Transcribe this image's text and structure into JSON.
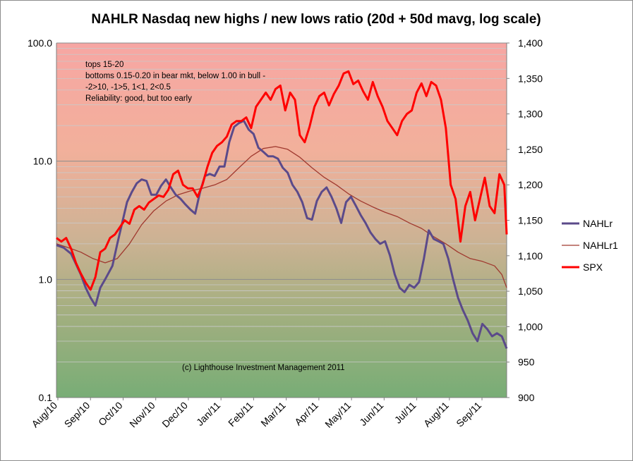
{
  "chart_data": {
    "type": "line",
    "title": "NAHLR Nasdaq new highs / new lows ratio (20d + 50d mavg, log scale)",
    "y_left": {
      "scale": "log",
      "range": [
        0.1,
        100
      ],
      "ticks": [
        "100.0",
        "10.0",
        "1.0",
        "0.1"
      ]
    },
    "y_right": {
      "range": [
        900,
        1400
      ],
      "ticks": [
        "1,400",
        "1,350",
        "1,300",
        "1,250",
        "1,200",
        "1,150",
        "1,100",
        "1,050",
        "1,000",
        "950",
        "900"
      ]
    },
    "x_labels": [
      "Aug/10",
      "Sep/10",
      "Oct/10",
      "Nov/10",
      "Dec/10",
      "Jan/11",
      "Feb/11",
      "Mar/11",
      "Apr/11",
      "May/11",
      "Jun/11",
      "Jul/11",
      "Aug/11",
      "Sep/11"
    ],
    "annotations": [
      "tops 15-20",
      "bottoms 0.15-0.20 in bear mkt, below 1.00 in bull -",
      "-2>10, -1>5, 1<1, 2<0.5",
      "Reliability: good, but too early"
    ],
    "copyright": "(c) Lighthouse Investment Management 2011",
    "legend_position": "right",
    "series": [
      {
        "name": "NAHLr",
        "axis": "left",
        "color": "#5b4a8a",
        "points": [
          [
            0,
            1.95
          ],
          [
            3,
            1.85
          ],
          [
            6,
            1.65
          ],
          [
            8,
            1.35
          ],
          [
            10,
            1.1
          ],
          [
            12,
            0.85
          ],
          [
            14,
            0.7
          ],
          [
            16,
            0.6
          ],
          [
            18,
            0.85
          ],
          [
            20,
            1.0
          ],
          [
            23,
            1.3
          ],
          [
            25,
            2.0
          ],
          [
            27,
            3.0
          ],
          [
            29,
            4.5
          ],
          [
            31,
            5.5
          ],
          [
            33,
            6.5
          ],
          [
            35,
            7.0
          ],
          [
            37,
            6.8
          ],
          [
            39,
            5.2
          ],
          [
            41,
            5.2
          ],
          [
            43,
            6.2
          ],
          [
            45,
            7.0
          ],
          [
            47,
            6.0
          ],
          [
            49,
            5.2
          ],
          [
            51,
            4.8
          ],
          [
            53,
            4.3
          ],
          [
            55,
            3.9
          ],
          [
            57,
            3.6
          ],
          [
            59,
            5.5
          ],
          [
            61,
            7.5
          ],
          [
            63,
            7.8
          ],
          [
            65,
            7.5
          ],
          [
            67,
            9.0
          ],
          [
            69,
            9.0
          ],
          [
            71,
            14.5
          ],
          [
            73,
            19.5
          ],
          [
            75,
            21.0
          ],
          [
            77,
            22.0
          ],
          [
            79,
            18.5
          ],
          [
            81,
            17.0
          ],
          [
            83,
            13.0
          ],
          [
            85,
            12.0
          ],
          [
            87,
            11.0
          ],
          [
            89,
            11.0
          ],
          [
            91,
            10.5
          ],
          [
            93,
            8.8
          ],
          [
            95,
            8.0
          ],
          [
            97,
            6.3
          ],
          [
            99,
            5.5
          ],
          [
            101,
            4.5
          ],
          [
            103,
            3.3
          ],
          [
            105,
            3.2
          ],
          [
            107,
            4.6
          ],
          [
            109,
            5.5
          ],
          [
            111,
            6.0
          ],
          [
            113,
            5.0
          ],
          [
            115,
            4.0
          ],
          [
            117,
            3.0
          ],
          [
            119,
            4.5
          ],
          [
            121,
            5.0
          ],
          [
            123,
            4.2
          ],
          [
            125,
            3.5
          ],
          [
            127,
            3.0
          ],
          [
            129,
            2.5
          ],
          [
            131,
            2.2
          ],
          [
            133,
            2.0
          ],
          [
            135,
            2.1
          ],
          [
            137,
            1.6
          ],
          [
            139,
            1.1
          ],
          [
            141,
            0.85
          ],
          [
            143,
            0.78
          ],
          [
            145,
            0.9
          ],
          [
            147,
            0.85
          ],
          [
            149,
            0.95
          ],
          [
            151,
            1.5
          ],
          [
            153,
            2.6
          ],
          [
            155,
            2.2
          ],
          [
            157,
            2.1
          ],
          [
            159,
            2.0
          ],
          [
            161,
            1.5
          ],
          [
            163,
            1.0
          ],
          [
            165,
            0.7
          ],
          [
            167,
            0.55
          ],
          [
            169,
            0.45
          ],
          [
            171,
            0.35
          ],
          [
            173,
            0.3
          ],
          [
            175,
            0.42
          ],
          [
            177,
            0.38
          ],
          [
            179,
            0.33
          ],
          [
            181,
            0.35
          ],
          [
            183,
            0.33
          ],
          [
            185,
            0.26
          ]
        ]
      },
      {
        "name": "NAHLr1",
        "axis": "left",
        "color": "#a0392f",
        "points": [
          [
            0,
            2.0
          ],
          [
            5,
            1.85
          ],
          [
            10,
            1.7
          ],
          [
            15,
            1.5
          ],
          [
            20,
            1.38
          ],
          [
            25,
            1.5
          ],
          [
            30,
            2.0
          ],
          [
            35,
            2.9
          ],
          [
            40,
            3.8
          ],
          [
            45,
            4.6
          ],
          [
            50,
            5.2
          ],
          [
            55,
            5.6
          ],
          [
            60,
            5.9
          ],
          [
            65,
            6.3
          ],
          [
            70,
            7.0
          ],
          [
            75,
            8.8
          ],
          [
            80,
            11.0
          ],
          [
            85,
            12.8
          ],
          [
            90,
            13.3
          ],
          [
            95,
            12.6
          ],
          [
            100,
            10.8
          ],
          [
            105,
            8.8
          ],
          [
            110,
            7.3
          ],
          [
            115,
            6.3
          ],
          [
            120,
            5.3
          ],
          [
            125,
            4.6
          ],
          [
            130,
            4.1
          ],
          [
            135,
            3.7
          ],
          [
            140,
            3.4
          ],
          [
            145,
            3.0
          ],
          [
            150,
            2.7
          ],
          [
            155,
            2.3
          ],
          [
            160,
            2.0
          ],
          [
            165,
            1.7
          ],
          [
            170,
            1.5
          ],
          [
            175,
            1.42
          ],
          [
            180,
            1.3
          ],
          [
            183,
            1.1
          ],
          [
            185,
            0.85
          ]
        ]
      },
      {
        "name": "SPX",
        "axis": "right",
        "color": "#ff0000",
        "points": [
          [
            0,
            1125
          ],
          [
            2,
            1120
          ],
          [
            4,
            1125
          ],
          [
            6,
            1110
          ],
          [
            8,
            1090
          ],
          [
            10,
            1075
          ],
          [
            12,
            1062
          ],
          [
            14,
            1052
          ],
          [
            16,
            1070
          ],
          [
            18,
            1105
          ],
          [
            20,
            1110
          ],
          [
            22,
            1125
          ],
          [
            24,
            1130
          ],
          [
            26,
            1140
          ],
          [
            28,
            1150
          ],
          [
            30,
            1145
          ],
          [
            32,
            1165
          ],
          [
            34,
            1170
          ],
          [
            36,
            1165
          ],
          [
            38,
            1175
          ],
          [
            40,
            1180
          ],
          [
            42,
            1185
          ],
          [
            44,
            1183
          ],
          [
            46,
            1193
          ],
          [
            48,
            1215
          ],
          [
            50,
            1220
          ],
          [
            52,
            1200
          ],
          [
            54,
            1195
          ],
          [
            56,
            1195
          ],
          [
            58,
            1183
          ],
          [
            60,
            1200
          ],
          [
            62,
            1225
          ],
          [
            64,
            1245
          ],
          [
            66,
            1255
          ],
          [
            68,
            1260
          ],
          [
            70,
            1268
          ],
          [
            72,
            1285
          ],
          [
            74,
            1290
          ],
          [
            76,
            1290
          ],
          [
            78,
            1295
          ],
          [
            80,
            1280
          ],
          [
            82,
            1310
          ],
          [
            84,
            1320
          ],
          [
            86,
            1330
          ],
          [
            88,
            1320
          ],
          [
            90,
            1335
          ],
          [
            92,
            1340
          ],
          [
            94,
            1305
          ],
          [
            96,
            1330
          ],
          [
            98,
            1320
          ],
          [
            100,
            1270
          ],
          [
            102,
            1260
          ],
          [
            104,
            1282
          ],
          [
            106,
            1310
          ],
          [
            108,
            1325
          ],
          [
            110,
            1330
          ],
          [
            112,
            1312
          ],
          [
            114,
            1328
          ],
          [
            116,
            1340
          ],
          [
            118,
            1357
          ],
          [
            120,
            1360
          ],
          [
            122,
            1342
          ],
          [
            124,
            1347
          ],
          [
            126,
            1332
          ],
          [
            128,
            1320
          ],
          [
            130,
            1345
          ],
          [
            132,
            1325
          ],
          [
            134,
            1310
          ],
          [
            136,
            1290
          ],
          [
            138,
            1280
          ],
          [
            140,
            1270
          ],
          [
            142,
            1290
          ],
          [
            144,
            1300
          ],
          [
            146,
            1305
          ],
          [
            148,
            1330
          ],
          [
            150,
            1343
          ],
          [
            152,
            1325
          ],
          [
            154,
            1345
          ],
          [
            156,
            1340
          ],
          [
            158,
            1320
          ],
          [
            160,
            1280
          ],
          [
            162,
            1200
          ],
          [
            164,
            1180
          ],
          [
            166,
            1120
          ],
          [
            168,
            1170
          ],
          [
            170,
            1190
          ],
          [
            172,
            1150
          ],
          [
            174,
            1180
          ],
          [
            176,
            1210
          ],
          [
            178,
            1170
          ],
          [
            180,
            1160
          ],
          [
            182,
            1215
          ],
          [
            184,
            1200
          ],
          [
            185,
            1130
          ]
        ]
      }
    ]
  }
}
